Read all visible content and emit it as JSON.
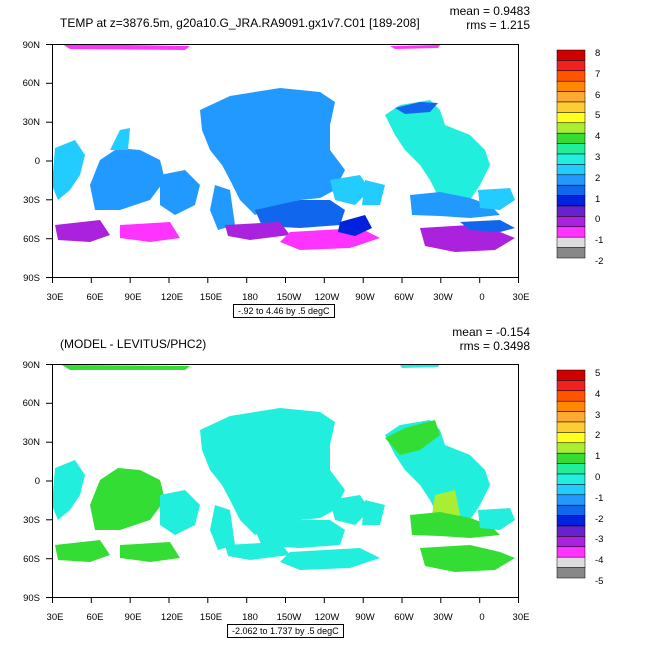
{
  "panels": [
    {
      "title": "TEMP at z=3876.5m, g20a10.G_JRA.RA9091.gx1v7.C01 [189-208]",
      "mean": "mean = 0.9483",
      "rms": "rms = 1.215",
      "caption": "-.92 to 4.46 by .5 degC",
      "colorbar_labels": [
        "8",
        "7",
        "6",
        "5",
        "4",
        "3",
        "2",
        "1",
        "0",
        "-1",
        "-2"
      ],
      "colors": [
        "#cc0000",
        "#ee2222",
        "#ff5500",
        "#ff8800",
        "#ffaa33",
        "#ffcc33",
        "#ffff22",
        "#aaee33",
        "#33dd33",
        "#22ee99",
        "#22eedd",
        "#22ccff",
        "#2299ff",
        "#1166ee",
        "#0022dd",
        "#6622cc",
        "#aa22dd",
        "#ff33ff",
        "#dddddd",
        "#888888"
      ]
    },
    {
      "title": "(MODEL - LEVITUS/PHC2)",
      "mean": "mean = -0.154",
      "rms": "rms = 0.3498",
      "caption": "-2.062 to 1.737 by .5 degC",
      "colorbar_labels": [
        "5",
        "4",
        "3",
        "2",
        "1",
        "0",
        "-1",
        "-2",
        "-3",
        "-4",
        "-5"
      ],
      "colors": [
        "#cc0000",
        "#ee2222",
        "#ff5500",
        "#ff8800",
        "#ffaa33",
        "#ffcc33",
        "#ffff22",
        "#aaee33",
        "#33dd33",
        "#22ee99",
        "#22eedd",
        "#22ccff",
        "#2299ff",
        "#1166ee",
        "#0022dd",
        "#6622cc",
        "#aa22dd",
        "#ff33ff",
        "#dddddd",
        "#888888"
      ]
    }
  ],
  "lon_labels": [
    "30E",
    "60E",
    "90E",
    "120E",
    "150E",
    "180",
    "150W",
    "120W",
    "90W",
    "60W",
    "30W",
    "0",
    "30E"
  ],
  "lat_labels": [
    "90N",
    "60N",
    "30N",
    "0",
    "30S",
    "60S",
    "90S"
  ]
}
